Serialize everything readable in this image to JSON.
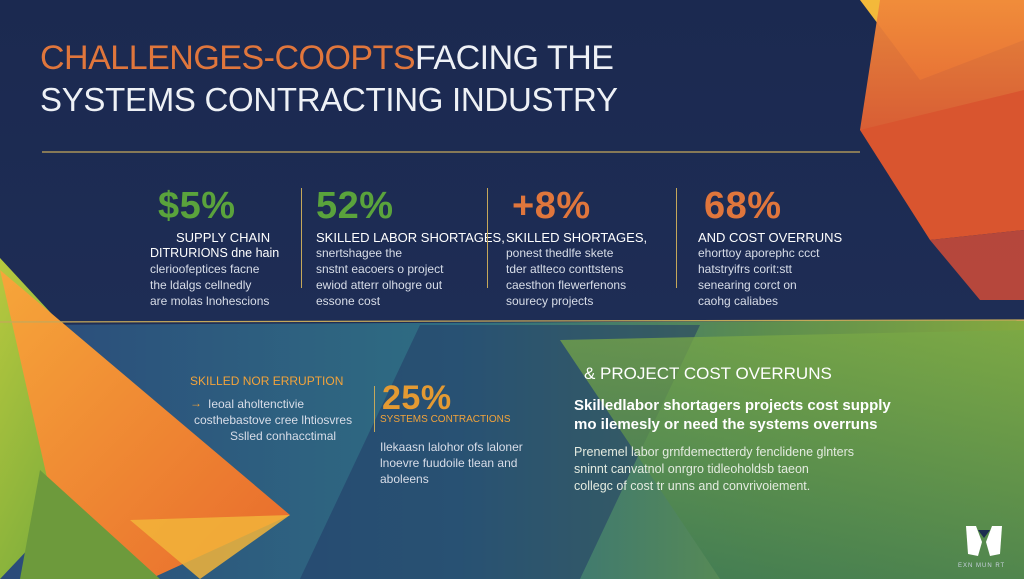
{
  "title": {
    "part1": "CHALLENGES-COOPTS",
    "part2": "FACING THE",
    "line2": "SYSTEMS CONTRACTING INDUSTRY"
  },
  "colors": {
    "navy": "#1d2b4f",
    "orange": "#e0763c",
    "green": "#5aa33c",
    "gold": "#c5a85a",
    "amber": "#f2a33b"
  },
  "stats": [
    {
      "value": "$5%",
      "value_color": "#5aa33c",
      "lines": [
        "SUPPLY CHAIN",
        "DITRURIONS dne hain",
        "clerioofeptices facne",
        "the ldalgs cellnedly",
        "are molas lnohescions"
      ]
    },
    {
      "value": "52%",
      "value_color": "#5aa33c",
      "lines": [
        "SKILLED LABOR SHORTAGES,",
        "snertshagee the",
        "snstnt eacoers o project",
        "ewiod atterr olhogre out",
        "essone cost"
      ]
    },
    {
      "value": "+8%",
      "value_color": "#e0763c",
      "lines": [
        "SKILLED SHORTAGES,",
        "ponest thedlfe skete",
        "tder atlteco conttstens",
        "caesthon flewerfenons",
        "sourecy projects"
      ]
    },
    {
      "value": "68%",
      "value_color": "#e0763c",
      "lines": [
        "AND COST OVERRUNS",
        "ehorttoy aporephc ccct",
        "hatstryifrs corit:stt",
        "senearing corct on",
        "caohg caliabes"
      ]
    }
  ],
  "lower_left": {
    "heading": "SKILLED NOR ERRUPTION",
    "arrow": "→",
    "lines": [
      "Ieoal aholtenctivie",
      "costhebastove cree lhtiosvres",
      "Sslled conhacctimal"
    ]
  },
  "lower_mid": {
    "value": "25%",
    "label": "SYSTEMS CONTRACTIONS",
    "lines": [
      "Ilekaasn lalohor ofs laloner",
      "lnoevre fuudoile tlean and",
      "aboleens"
    ]
  },
  "lower_right": {
    "title": "& PROJECT COST OVERRUNS",
    "sub_lines": [
      "Skilledlabor shortagers projects cost supply",
      "mo ilemesly or need the systems overruns"
    ],
    "body_lines": [
      "Prenemel labor grnfdemectterdy fenclidene glnters",
      "sninnt canvatnol onrgro tidleoholdsb taeon",
      "collegc of cost tr unns and convrivoiement."
    ]
  },
  "logo": {
    "caption": "EXN MUN RT"
  }
}
